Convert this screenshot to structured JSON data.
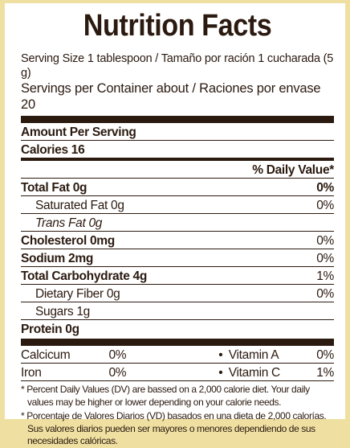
{
  "title": "Nutrition Facts",
  "serving_size": "Serving Size 1 tablespoon / Tamaño por ración 1 cucharada (5 g)",
  "servings_per_container": "Servings per Container about / Raciones por envase 20",
  "amount_per_serving": "Amount Per Serving",
  "calories": "Calories 16",
  "daily_value_header": "% Daily Value*",
  "nutrients": [
    {
      "label": "Total Fat 0g",
      "dv": "0%"
    },
    {
      "label": "Saturated Fat 0g",
      "dv": "0%"
    },
    {
      "label": "Trans Fat 0g",
      "dv": ""
    },
    {
      "label": "Cholesterol 0mg",
      "dv": "0%"
    },
    {
      "label": "Sodium 2mg",
      "dv": "0%"
    },
    {
      "label": "Total Carbohydrate 4g",
      "dv": "1%"
    },
    {
      "label": "Dietary Fiber 0g",
      "dv": "0%"
    },
    {
      "label": "Sugars 1g",
      "dv": ""
    },
    {
      "label": "Protein 0g",
      "dv": ""
    }
  ],
  "vitamins": [
    {
      "name1": "Calcicum",
      "val1": "0%",
      "name2": "Vitamin A",
      "val2": "0%"
    },
    {
      "name1": "Iron",
      "val1": "0%",
      "name2": "Vitamin C",
      "val2": "1%"
    }
  ],
  "bullet": "•",
  "footnote_en": "* Percent Daily Values (DV) are bassed on a 2,000 calorie diet. Your daily values may be higher or lower depending on your calorie needs.",
  "footnote_es": "* Porcentaje de Valores Diarios (VD) basados en una dieta de 2,000 calorías. Sus valores diarios pueden ser mayores o menores dependiendo de sus necesidades calóricas."
}
